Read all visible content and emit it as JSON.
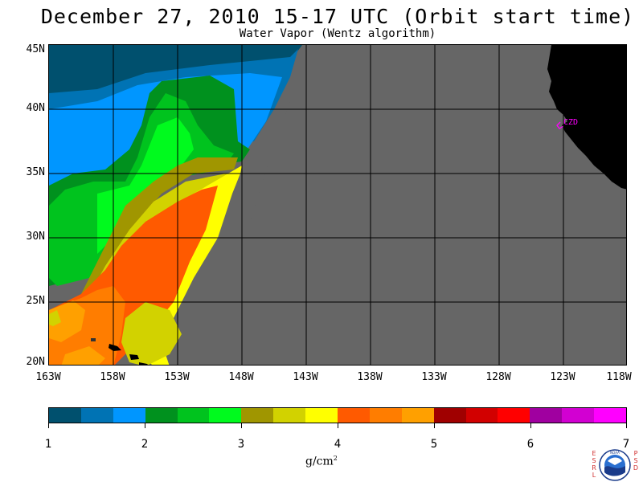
{
  "title": "December 27, 2010  15-17 UTC  (Orbit start time)",
  "subtitle": "Water Vapor (Wentz algorithm)",
  "map": {
    "lat_labels": [
      "45N",
      "40N",
      "35N",
      "30N",
      "25N",
      "20N"
    ],
    "lon_labels": [
      "163W",
      "158W",
      "153W",
      "148W",
      "143W",
      "138W",
      "133W",
      "128W",
      "123W",
      "118W"
    ],
    "station_label": "CZD",
    "colors": {
      "no_data": "#666666",
      "land": "#000000",
      "station": "#ff00ff"
    }
  },
  "colorbar": {
    "ticks": [
      "1",
      "2",
      "3",
      "4",
      "5",
      "6",
      "7"
    ],
    "unit": "g/cm",
    "unit_exponent": "2",
    "colors": [
      "#00506e",
      "#0073b4",
      "#0096ff",
      "#00911e",
      "#00c31e",
      "#00fa1e",
      "#a09600",
      "#d2d200",
      "#ffff00",
      "#ff5a00",
      "#ff7d00",
      "#ffa000",
      "#a00000",
      "#d20000",
      "#ff0000",
      "#a000a0",
      "#d200d2",
      "#ff00ff"
    ]
  },
  "logo": {
    "left_text": "ESRL",
    "right_text": "PSD",
    "center_text": "NOAA"
  }
}
